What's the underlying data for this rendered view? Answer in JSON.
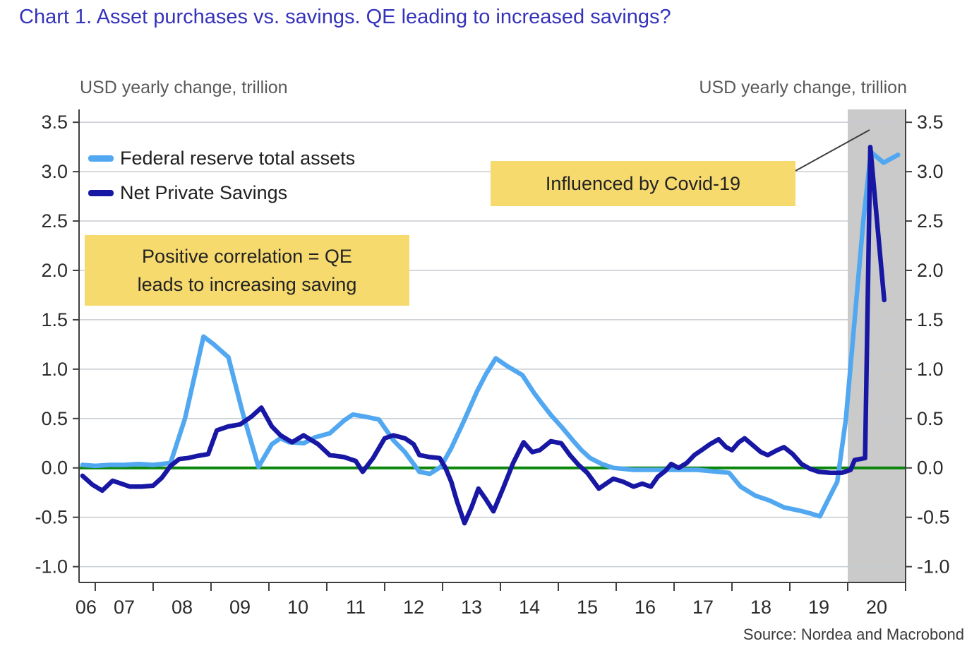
{
  "page": {
    "title": "Chart 1. Asset purchases vs. savings. QE leading to increased savings?",
    "source": "Source: Nordea and Macrobond"
  },
  "chart_data": {
    "type": "line",
    "title": "Chart 1. Asset purchases vs. savings. QE leading to increased savings?",
    "y_axis_label_left": "USD yearly change, trillion",
    "y_axis_label_right": "USD yearly change, trillion",
    "xlabel": "",
    "ylabel": "USD yearly change, trillion",
    "xlim": [
      2006.72,
      2021.0
    ],
    "ylim": [
      -1.16,
      3.63
    ],
    "grid": true,
    "legend_position": "top-left",
    "yticks": [
      -1.0,
      -0.5,
      0.0,
      0.5,
      1.0,
      1.5,
      2.0,
      2.5,
      3.0,
      3.5
    ],
    "ytick_labels": [
      "-1.0",
      "-0.5",
      "0.0",
      "0.5",
      "1.0",
      "1.5",
      "2.0",
      "2.5",
      "3.0",
      "3.5"
    ],
    "xticks": [
      2007,
      2008,
      2009,
      2010,
      2011,
      2012,
      2013,
      2014,
      2015,
      2016,
      2017,
      2018,
      2019,
      2020,
      2021
    ],
    "x_labels": [
      {
        "label": "06",
        "t": 2006.84
      },
      {
        "label": "07",
        "t": 2007.5
      },
      {
        "label": "08",
        "t": 2008.5
      },
      {
        "label": "09",
        "t": 2009.5
      },
      {
        "label": "10",
        "t": 2010.5
      },
      {
        "label": "11",
        "t": 2011.5
      },
      {
        "label": "12",
        "t": 2012.5
      },
      {
        "label": "13",
        "t": 2013.5
      },
      {
        "label": "14",
        "t": 2014.5
      },
      {
        "label": "15",
        "t": 2015.5
      },
      {
        "label": "16",
        "t": 2016.5
      },
      {
        "label": "17",
        "t": 2017.5
      },
      {
        "label": "18",
        "t": 2018.5
      },
      {
        "label": "19",
        "t": 2019.5
      },
      {
        "label": "20",
        "t": 2020.5
      }
    ],
    "zero_line_color": "#0c870c",
    "gridline_color": "#c7ccd1",
    "axis_color": "#3f3f3f",
    "shaded_region": {
      "from": 2020.0,
      "to": 2021.0,
      "color": "#cacaca",
      "note": "Influenced by Covid-19"
    },
    "annotations": [
      {
        "line1": "Positive correlation = QE",
        "line2": "leads to increasing saving",
        "bg": "#f6da6e"
      },
      {
        "text": "Influenced by Covid-19",
        "bg": "#f6da6e"
      }
    ],
    "series": [
      {
        "name": "Federal reserve total assets",
        "color": "#52a8f0",
        "points": [
          [
            2006.78,
            0.03
          ],
          [
            2007.0,
            0.02
          ],
          [
            2007.25,
            0.03
          ],
          [
            2007.5,
            0.03
          ],
          [
            2007.75,
            0.04
          ],
          [
            2008.0,
            0.03
          ],
          [
            2008.3,
            0.05
          ],
          [
            2008.55,
            0.5
          ],
          [
            2008.87,
            1.33
          ],
          [
            2009.05,
            1.25
          ],
          [
            2009.3,
            1.12
          ],
          [
            2009.55,
            0.55
          ],
          [
            2009.82,
            0.01
          ],
          [
            2010.05,
            0.24
          ],
          [
            2010.2,
            0.3
          ],
          [
            2010.35,
            0.26
          ],
          [
            2010.6,
            0.25
          ],
          [
            2010.8,
            0.31
          ],
          [
            2011.05,
            0.35
          ],
          [
            2011.3,
            0.48
          ],
          [
            2011.45,
            0.54
          ],
          [
            2011.65,
            0.52
          ],
          [
            2011.9,
            0.49
          ],
          [
            2012.15,
            0.28
          ],
          [
            2012.35,
            0.16
          ],
          [
            2012.6,
            -0.04
          ],
          [
            2012.78,
            -0.06
          ],
          [
            2012.97,
            0.01
          ],
          [
            2013.15,
            0.2
          ],
          [
            2013.35,
            0.45
          ],
          [
            2013.6,
            0.78
          ],
          [
            2013.75,
            0.95
          ],
          [
            2013.92,
            1.11
          ],
          [
            2014.12,
            1.03
          ],
          [
            2014.38,
            0.94
          ],
          [
            2014.58,
            0.76
          ],
          [
            2014.72,
            0.65
          ],
          [
            2014.88,
            0.53
          ],
          [
            2015.05,
            0.42
          ],
          [
            2015.25,
            0.28
          ],
          [
            2015.4,
            0.18
          ],
          [
            2015.55,
            0.1
          ],
          [
            2015.75,
            0.04
          ],
          [
            2015.95,
            0.0
          ],
          [
            2016.3,
            -0.02
          ],
          [
            2016.8,
            -0.02
          ],
          [
            2017.4,
            -0.02
          ],
          [
            2017.95,
            -0.05
          ],
          [
            2018.15,
            -0.19
          ],
          [
            2018.4,
            -0.28
          ],
          [
            2018.65,
            -0.33
          ],
          [
            2018.9,
            -0.4
          ],
          [
            2019.15,
            -0.43
          ],
          [
            2019.35,
            -0.46
          ],
          [
            2019.52,
            -0.49
          ],
          [
            2019.68,
            -0.3
          ],
          [
            2019.82,
            -0.14
          ],
          [
            2019.97,
            0.5
          ],
          [
            2020.12,
            1.5
          ],
          [
            2020.27,
            2.5
          ],
          [
            2020.4,
            3.2
          ],
          [
            2020.62,
            3.09
          ],
          [
            2020.87,
            3.17
          ]
        ]
      },
      {
        "name": "Net Private Savings",
        "color": "#1717a4",
        "points": [
          [
            2006.78,
            -0.08
          ],
          [
            2006.95,
            -0.17
          ],
          [
            2007.12,
            -0.23
          ],
          [
            2007.3,
            -0.13
          ],
          [
            2007.45,
            -0.16
          ],
          [
            2007.6,
            -0.19
          ],
          [
            2007.8,
            -0.19
          ],
          [
            2008.0,
            -0.18
          ],
          [
            2008.15,
            -0.1
          ],
          [
            2008.3,
            0.02
          ],
          [
            2008.45,
            0.09
          ],
          [
            2008.6,
            0.1
          ],
          [
            2008.75,
            0.12
          ],
          [
            2008.95,
            0.14
          ],
          [
            2009.1,
            0.38
          ],
          [
            2009.3,
            0.42
          ],
          [
            2009.5,
            0.44
          ],
          [
            2009.7,
            0.52
          ],
          [
            2009.87,
            0.61
          ],
          [
            2010.05,
            0.42
          ],
          [
            2010.2,
            0.33
          ],
          [
            2010.4,
            0.26
          ],
          [
            2010.6,
            0.33
          ],
          [
            2010.85,
            0.24
          ],
          [
            2011.05,
            0.13
          ],
          [
            2011.3,
            0.11
          ],
          [
            2011.5,
            0.07
          ],
          [
            2011.62,
            -0.04
          ],
          [
            2011.8,
            0.1
          ],
          [
            2012.0,
            0.3
          ],
          [
            2012.15,
            0.33
          ],
          [
            2012.35,
            0.3
          ],
          [
            2012.5,
            0.24
          ],
          [
            2012.6,
            0.13
          ],
          [
            2012.78,
            0.11
          ],
          [
            2012.95,
            0.1
          ],
          [
            2013.05,
            0.0
          ],
          [
            2013.15,
            -0.14
          ],
          [
            2013.25,
            -0.34
          ],
          [
            2013.38,
            -0.56
          ],
          [
            2013.5,
            -0.4
          ],
          [
            2013.62,
            -0.21
          ],
          [
            2013.75,
            -0.32
          ],
          [
            2013.88,
            -0.44
          ],
          [
            2014.05,
            -0.2
          ],
          [
            2014.22,
            0.05
          ],
          [
            2014.4,
            0.26
          ],
          [
            2014.55,
            0.16
          ],
          [
            2014.68,
            0.18
          ],
          [
            2014.87,
            0.27
          ],
          [
            2015.05,
            0.25
          ],
          [
            2015.2,
            0.13
          ],
          [
            2015.35,
            0.03
          ],
          [
            2015.5,
            -0.05
          ],
          [
            2015.7,
            -0.21
          ],
          [
            2015.95,
            -0.11
          ],
          [
            2016.12,
            -0.14
          ],
          [
            2016.3,
            -0.19
          ],
          [
            2016.45,
            -0.16
          ],
          [
            2016.6,
            -0.19
          ],
          [
            2016.72,
            -0.09
          ],
          [
            2016.85,
            -0.03
          ],
          [
            2016.95,
            0.04
          ],
          [
            2017.08,
            0.0
          ],
          [
            2017.22,
            0.05
          ],
          [
            2017.35,
            0.13
          ],
          [
            2017.5,
            0.19
          ],
          [
            2017.62,
            0.24
          ],
          [
            2017.77,
            0.29
          ],
          [
            2017.9,
            0.21
          ],
          [
            2018.0,
            0.18
          ],
          [
            2018.12,
            0.26
          ],
          [
            2018.22,
            0.3
          ],
          [
            2018.38,
            0.22
          ],
          [
            2018.5,
            0.16
          ],
          [
            2018.62,
            0.13
          ],
          [
            2018.78,
            0.18
          ],
          [
            2018.9,
            0.21
          ],
          [
            2019.05,
            0.14
          ],
          [
            2019.2,
            0.04
          ],
          [
            2019.35,
            -0.01
          ],
          [
            2019.5,
            -0.04
          ],
          [
            2019.7,
            -0.05
          ],
          [
            2019.9,
            -0.05
          ],
          [
            2020.05,
            -0.02
          ],
          [
            2020.12,
            0.08
          ],
          [
            2020.3,
            0.1
          ],
          [
            2020.39,
            3.25
          ],
          [
            2020.63,
            1.7
          ]
        ]
      }
    ]
  }
}
